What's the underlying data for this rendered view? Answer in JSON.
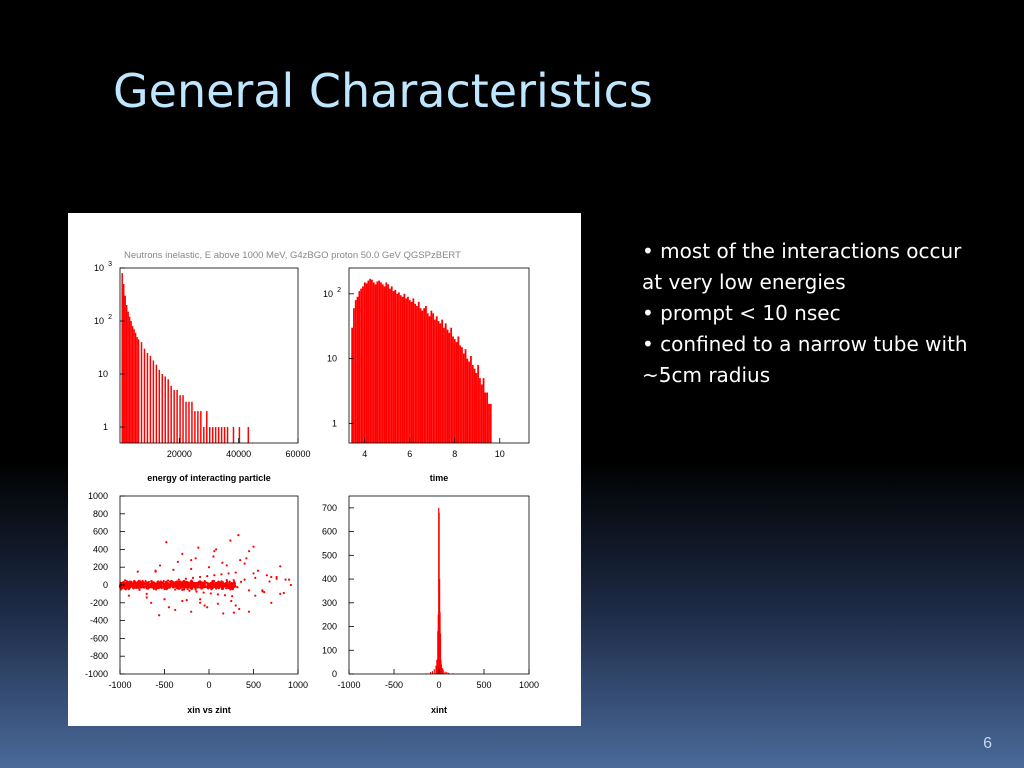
{
  "slide": {
    "title": "General Characteristics",
    "bullets": [
      "• most of the interactions occur at very low energies",
      "• prompt < 10 nsec",
      "• confined to a narrow tube with ~5cm radius"
    ],
    "page_number": "6"
  },
  "figure": {
    "header": "Neutrons inelastic, E above 1000 MeV,  G4zBGO proton 50.0 GeV QGSPzBERT"
  },
  "chart_data": [
    {
      "type": "bar",
      "xlabel": "energy of interacting particle",
      "ylabel": "",
      "log_y": true,
      "xlim": [
        0,
        60000
      ],
      "ylim": [
        0.5,
        1000
      ],
      "x_ticks": [
        "20000",
        "40000",
        "60000"
      ],
      "y_ticks": [
        "1",
        "10",
        "10^2",
        "10^3"
      ],
      "series": [
        {
          "color": "#ff0000",
          "bin_width": 500,
          "x": [
            500,
            1000,
            1500,
            2000,
            2500,
            3000,
            3500,
            4000,
            4500,
            5000,
            5500,
            6000,
            7000,
            8000,
            9000,
            10000,
            11000,
            12000,
            13000,
            14000,
            15000,
            16000,
            17000,
            18000,
            19000,
            20000,
            21000,
            22000,
            23000,
            24000,
            25000,
            26000,
            27000,
            28000,
            29000,
            30000,
            31000,
            32000,
            33000,
            34000,
            35000,
            36000,
            38000,
            40000,
            43000
          ],
          "values": [
            800,
            500,
            300,
            200,
            150,
            120,
            100,
            80,
            70,
            60,
            50,
            45,
            40,
            30,
            25,
            22,
            18,
            15,
            12,
            10,
            9,
            8,
            6,
            5,
            5,
            4,
            4,
            3,
            3,
            3,
            2,
            2,
            2,
            1,
            2,
            1,
            1,
            1,
            1,
            1,
            1,
            1,
            1,
            1,
            1
          ]
        }
      ]
    },
    {
      "type": "bar",
      "xlabel": "time",
      "ylabel": "",
      "log_y": true,
      "xlim": [
        3.3,
        11.3
      ],
      "ylim": [
        0.5,
        250
      ],
      "x_ticks": [
        "4",
        "6",
        "8",
        "10"
      ],
      "y_ticks": [
        "1",
        "10",
        "10^2"
      ],
      "series": [
        {
          "color": "#ff0000",
          "x_start": 3.4,
          "bin_width": 0.08,
          "values": [
            30,
            60,
            80,
            90,
            110,
            120,
            130,
            150,
            145,
            160,
            170,
            165,
            150,
            140,
            155,
            160,
            150,
            140,
            130,
            150,
            140,
            120,
            130,
            110,
            115,
            100,
            105,
            95,
            90,
            100,
            85,
            90,
            80,
            75,
            85,
            70,
            65,
            75,
            60,
            55,
            60,
            65,
            50,
            45,
            55,
            50,
            40,
            45,
            38,
            35,
            40,
            30,
            35,
            28,
            25,
            30,
            22,
            20,
            18,
            22,
            16,
            15,
            12,
            14,
            10,
            9,
            11,
            8,
            7,
            6,
            8,
            5,
            4,
            5,
            3,
            3,
            2,
            2
          ]
        }
      ]
    },
    {
      "type": "scatter",
      "xlabel": "xin vs zint",
      "ylabel": "",
      "xlim": [
        -1000,
        1000
      ],
      "ylim": [
        -1000,
        1000
      ],
      "x_ticks": [
        "-1000",
        "-500",
        "0",
        "500",
        "1000"
      ],
      "y_ticks": [
        "-1000",
        "-800",
        "-600",
        "-400",
        "-200",
        "0",
        "200",
        "400",
        "600",
        "800",
        "1000"
      ],
      "series": [
        {
          "color": "#ff0000",
          "x": [
            -950,
            -900,
            -860,
            -820,
            -780,
            -740,
            -700,
            -660,
            -620,
            -580,
            -540,
            -500,
            -460,
            -420,
            -380,
            -340,
            -300,
            -260,
            -220,
            -180,
            -140,
            -100,
            -60,
            -20,
            20,
            60,
            100,
            140,
            180,
            220,
            260,
            300,
            -900,
            -800,
            -700,
            -600,
            -500,
            -400,
            -300,
            -200,
            -100,
            0,
            100,
            200,
            300,
            400,
            500,
            600,
            700,
            800,
            900,
            -650,
            -550,
            -450,
            -350,
            -250,
            -150,
            -50,
            50,
            150,
            250,
            350,
            450,
            550,
            -480,
            -300,
            -120,
            60,
            240,
            420,
            -560,
            -380,
            -200,
            -20,
            160,
            340,
            520,
            700,
            860,
            -200,
            330,
            500,
            650,
            800,
            -700,
            -600,
            -100,
            80,
            280,
            450,
            620,
            760,
            920,
            -1000,
            -980,
            -930,
            -880,
            -840,
            -800,
            -760,
            -720,
            -680,
            -640,
            -600,
            -560,
            -520,
            -480,
            -440,
            -400,
            -360,
            -320,
            -280,
            -240,
            -200,
            -160,
            -120,
            -80,
            -40,
            0,
            40,
            80,
            120,
            160,
            200,
            240,
            280,
            320,
            360,
            400,
            450,
            520,
            600,
            680,
            760,
            840
          ],
          "y": [
            0,
            10,
            -10,
            5,
            15,
            -20,
            20,
            -15,
            30,
            -30,
            40,
            -40,
            50,
            45,
            -50,
            60,
            -55,
            70,
            -65,
            80,
            -75,
            90,
            -85,
            100,
            -95,
            110,
            -105,
            120,
            -115,
            130,
            -125,
            140,
            -120,
            150,
            -140,
            160,
            -160,
            170,
            -180,
            180,
            -200,
            200,
            -210,
            220,
            -230,
            240,
            130,
            -60,
            90,
            -100,
            60,
            -200,
            220,
            -250,
            260,
            -170,
            300,
            -230,
            320,
            250,
            -180,
            280,
            -300,
            160,
            480,
            350,
            420,
            380,
            500,
            300,
            -340,
            -280,
            -300,
            -250,
            -320,
            -270,
            -120,
            -200,
            60,
            280,
            560,
            430,
            110,
            210,
            -100,
            150,
            -160,
            400,
            -310,
            380,
            -80,
            70,
            0,
            -15,
            20,
            -5,
            12,
            -18,
            8,
            -25,
            18,
            -12,
            25,
            -8,
            30,
            -22,
            35,
            -30,
            10,
            40,
            -35,
            22,
            -45,
            50,
            -10,
            28,
            0,
            -20,
            15,
            45,
            -40,
            30,
            -30,
            55,
            -50,
            20,
            -25,
            35,
            60,
            -60,
            80,
            -70,
            40,
            90,
            -90
          ],
          "dense_band": {
            "x_range": [
              -1000,
              300
            ],
            "y_range": [
              -60,
              60
            ],
            "note_only_for_renderer": false
          }
        }
      ]
    },
    {
      "type": "bar",
      "xlabel": "xint",
      "ylabel": "",
      "log_y": false,
      "xlim": [
        -1000,
        1000
      ],
      "ylim": [
        0,
        750
      ],
      "x_ticks": [
        "-1000",
        "-500",
        "0",
        "500",
        "1000"
      ],
      "y_ticks": [
        "0",
        "100",
        "200",
        "300",
        "400",
        "500",
        "600",
        "700"
      ],
      "series": [
        {
          "color": "#ff0000",
          "bin_width": 10,
          "x": [
            -200,
            -150,
            -100,
            -80,
            -60,
            -40,
            -30,
            -20,
            -15,
            -10,
            -5,
            0,
            5,
            10,
            15,
            20,
            30,
            40,
            60,
            80,
            100,
            150,
            200
          ],
          "values": [
            1,
            3,
            8,
            12,
            20,
            35,
            60,
            180,
            250,
            700,
            680,
            400,
            260,
            170,
            60,
            40,
            25,
            18,
            10,
            8,
            5,
            3,
            1
          ]
        }
      ]
    }
  ]
}
